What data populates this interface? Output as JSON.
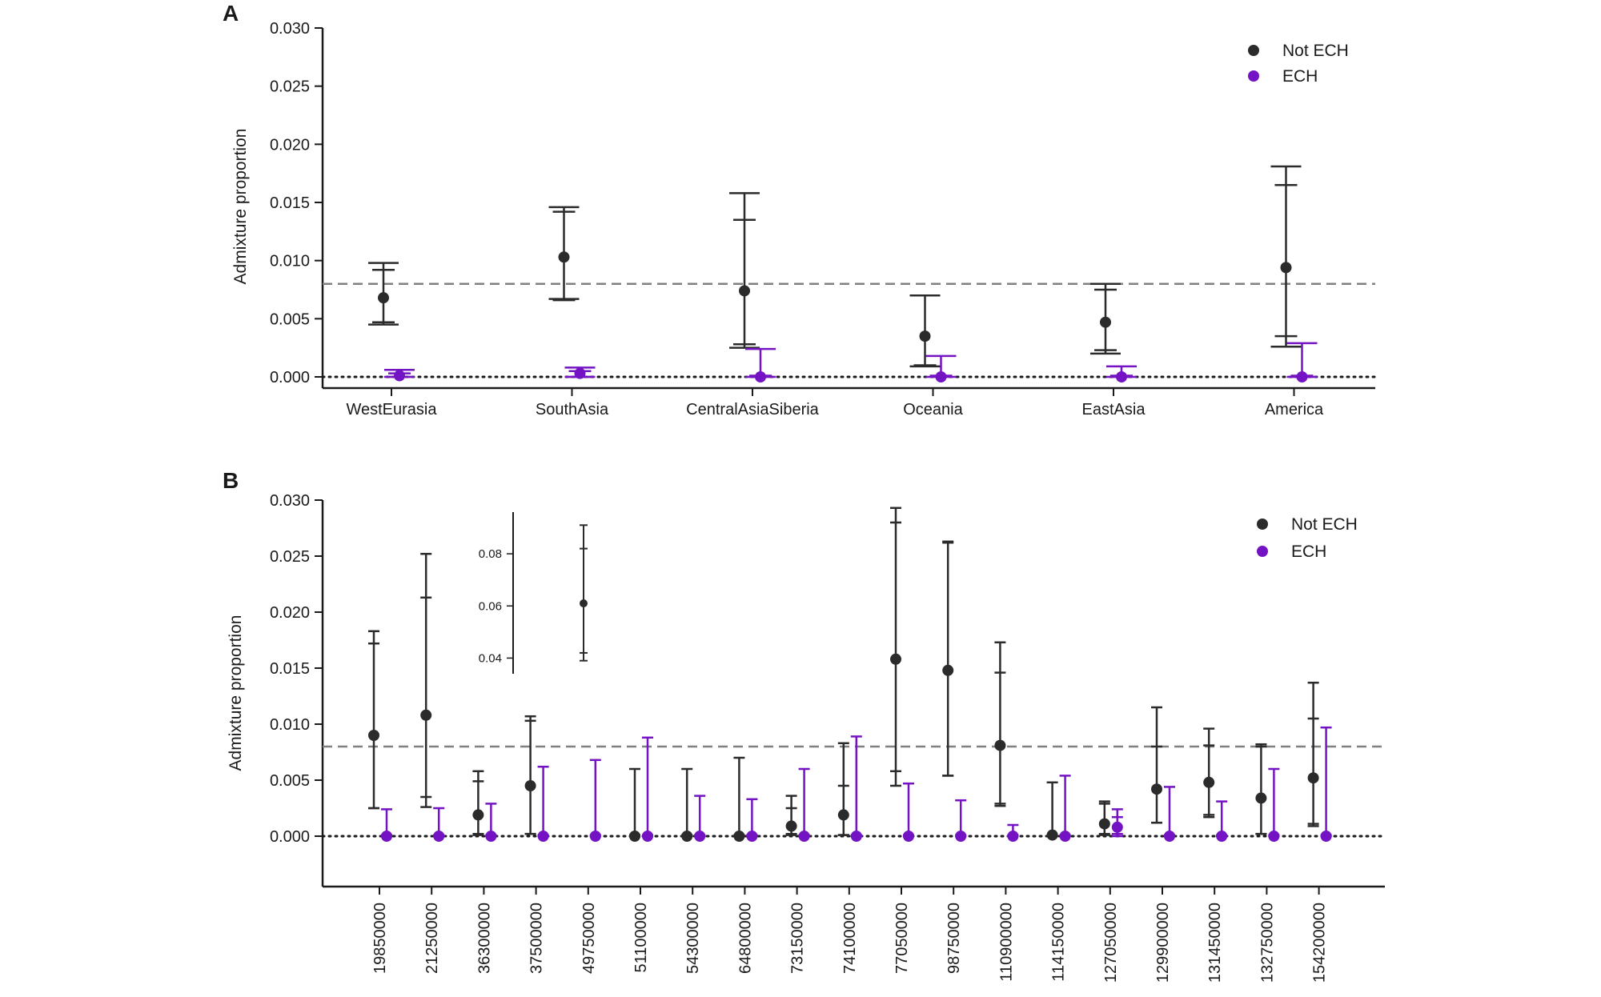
{
  "colors": {
    "not_ech": "#2b2b2b",
    "ech": "#7413c4",
    "threshold": "#808080"
  },
  "chart_data": [
    {
      "panel_label": "A",
      "type": "scatter",
      "title": "",
      "xlabel": "",
      "ylabel": "Admixture proportion",
      "ylim": [
        0,
        0.03
      ],
      "yticks": [
        "0.000",
        "0.005",
        "0.010",
        "0.015",
        "0.020",
        "0.025",
        "0.030"
      ],
      "categories": [
        "WestEurasia",
        "SouthAsia",
        "CentralAsiaSiberia",
        "Oceania",
        "EastAsia",
        "America"
      ],
      "threshold_line": 0.008,
      "zero_line": 0.0,
      "legend": {
        "position": "top-right",
        "entries": [
          "Not ECH",
          "ECH"
        ]
      },
      "series": [
        {
          "name": "Not ECH",
          "values": [
            0.0068,
            0.0103,
            0.0074,
            0.0035,
            0.0047,
            0.0094
          ],
          "ci_outer": [
            [
              0.0045,
              0.0098
            ],
            [
              0.0067,
              0.0146
            ],
            [
              0.0025,
              0.0158
            ],
            [
              0.0009,
              0.007
            ],
            [
              0.002,
              0.008
            ],
            [
              0.0026,
              0.0181
            ]
          ],
          "ci_inner": [
            [
              0.0047,
              0.0092
            ],
            [
              0.0066,
              0.0142
            ],
            [
              0.0028,
              0.0135
            ],
            [
              0.001,
              0.007
            ],
            [
              0.0023,
              0.0075
            ],
            [
              0.0035,
              0.0165
            ]
          ]
        },
        {
          "name": "ECH",
          "values": [
            0.0001,
            0.0003,
            0.0,
            0.0,
            0.0,
            0.0
          ],
          "ci_outer": [
            [
              0.0,
              0.0006
            ],
            [
              0.0,
              0.0008
            ],
            [
              0.0,
              0.0024
            ],
            [
              0.0,
              0.0018
            ],
            [
              0.0,
              0.0009
            ],
            [
              0.0,
              0.0029
            ]
          ],
          "ci_inner": [
            [
              0.0,
              0.0003
            ],
            [
              0.0,
              0.0005
            ],
            [
              0.0,
              0.0001
            ],
            [
              0.0,
              0.0001
            ],
            [
              0.0,
              0.0001
            ],
            [
              0.0,
              0.0001
            ]
          ]
        }
      ]
    },
    {
      "panel_label": "B",
      "type": "scatter",
      "title": "",
      "xlabel": "",
      "ylabel": "Admixture proportion",
      "ylim": [
        -0.0045,
        0.03
      ],
      "yticks": [
        "0.000",
        "0.005",
        "0.010",
        "0.015",
        "0.020",
        "0.025",
        "0.030"
      ],
      "categories": [
        "19850000",
        "21250000",
        "36300000",
        "37500000",
        "49750000",
        "51100000",
        "54300000",
        "64800000",
        "73150000",
        "74100000",
        "77050000",
        "98750000",
        "110900000",
        "114150000",
        "127050000",
        "129900000",
        "131450000",
        "132750000",
        "154200000"
      ],
      "threshold_line": 0.008,
      "zero_line": 0.0,
      "legend": {
        "position": "top-right",
        "entries": [
          "Not ECH",
          "ECH"
        ]
      },
      "series": [
        {
          "name": "Not ECH",
          "values": [
            0.009,
            0.0108,
            0.0019,
            0.0045,
            null,
            0.0,
            0.0,
            0.0,
            0.0009,
            0.0019,
            0.0158,
            0.0148,
            0.0081,
            0.0001,
            0.0011,
            0.0042,
            0.0048,
            0.0034,
            0.0052
          ],
          "ci_outer": [
            [
              0.0025,
              0.0183
            ],
            [
              0.0026,
              0.0252
            ],
            [
              0.0001,
              0.0058
            ],
            [
              0.0002,
              0.0107
            ],
            null,
            [
              0.0,
              0.006
            ],
            [
              0.0,
              0.006
            ],
            [
              0.0,
              0.007
            ],
            [
              0.0001,
              0.0036
            ],
            [
              0.0001,
              0.0083
            ],
            [
              0.0045,
              0.0293
            ],
            [
              0.0054,
              0.0263
            ],
            [
              0.0027,
              0.0173
            ],
            [
              0.0,
              0.0048
            ],
            [
              0.0001,
              0.0031
            ],
            [
              0.0012,
              0.0115
            ],
            [
              0.0017,
              0.0096
            ],
            [
              0.0002,
              0.0082
            ],
            [
              0.0009,
              0.0137
            ]
          ],
          "ci_inner": [
            [
              0.0025,
              0.0172
            ],
            [
              0.0035,
              0.0213
            ],
            [
              0.0002,
              0.0049
            ],
            [
              0.0002,
              0.0103
            ],
            null,
            [
              0.0,
              0.0001
            ],
            [
              0.0,
              0.0001
            ],
            [
              0.0,
              0.0001
            ],
            [
              0.0002,
              0.0025
            ],
            [
              0.0001,
              0.0045
            ],
            [
              0.0058,
              0.028
            ],
            [
              0.0054,
              0.0262
            ],
            [
              0.0029,
              0.0146
            ],
            [
              0.0,
              0.0001
            ],
            [
              0.0002,
              0.0029
            ],
            [
              0.0012,
              0.008
            ],
            [
              0.0019,
              0.0081
            ],
            [
              0.0002,
              0.008
            ],
            [
              0.0011,
              0.0105
            ]
          ]
        },
        {
          "name": "ECH",
          "values": [
            0.0,
            0.0,
            0.0,
            0.0,
            0.0,
            0.0,
            0.0,
            0.0,
            0.0,
            0.0,
            0.0,
            0.0,
            0.0,
            0.0,
            0.0008,
            0.0,
            0.0,
            0.0,
            0.0
          ],
          "ci_outer": [
            [
              0.0,
              0.0024
            ],
            [
              0.0,
              0.0025
            ],
            [
              0.0,
              0.0029
            ],
            [
              0.0,
              0.0062
            ],
            [
              0.0,
              0.0068
            ],
            [
              0.0,
              0.0088
            ],
            [
              0.0,
              0.0036
            ],
            [
              0.0,
              0.0033
            ],
            [
              0.0,
              0.006
            ],
            [
              0.0,
              0.0089
            ],
            [
              0.0,
              0.0047
            ],
            [
              0.0,
              0.0032
            ],
            [
              0.0,
              0.001
            ],
            [
              0.0,
              0.0054
            ],
            [
              0.0,
              0.0024
            ],
            [
              0.0,
              0.0044
            ],
            [
              0.0,
              0.0031
            ],
            [
              0.0,
              0.006
            ],
            [
              0.0,
              0.0097
            ]
          ],
          "ci_inner": [
            [
              0.0,
              0.0001
            ],
            [
              0.0,
              0.0001
            ],
            [
              0.0,
              0.0001
            ],
            [
              0.0,
              0.0001
            ],
            [
              0.0,
              0.0001
            ],
            [
              0.0,
              0.0001
            ],
            [
              0.0,
              0.0001
            ],
            [
              0.0,
              0.0001
            ],
            [
              0.0,
              0.0001
            ],
            [
              0.0,
              0.0001
            ],
            [
              0.0,
              0.0001
            ],
            [
              0.0,
              0.0001
            ],
            [
              0.0,
              0.0001
            ],
            [
              0.0,
              0.0001
            ],
            [
              0.0002,
              0.0017
            ],
            [
              0.0,
              0.0001
            ],
            [
              0.0,
              0.0001
            ],
            [
              0.0,
              0.0001
            ],
            [
              0.0,
              0.0001
            ]
          ]
        }
      ],
      "inset": {
        "category": "49750000",
        "yticks": [
          "0.04",
          "0.06",
          "0.08"
        ],
        "ylim": [
          0.034,
          0.096
        ],
        "value": 0.061,
        "ci_outer": [
          0.039,
          0.091
        ],
        "ci_inner": [
          0.042,
          0.082
        ]
      }
    }
  ]
}
